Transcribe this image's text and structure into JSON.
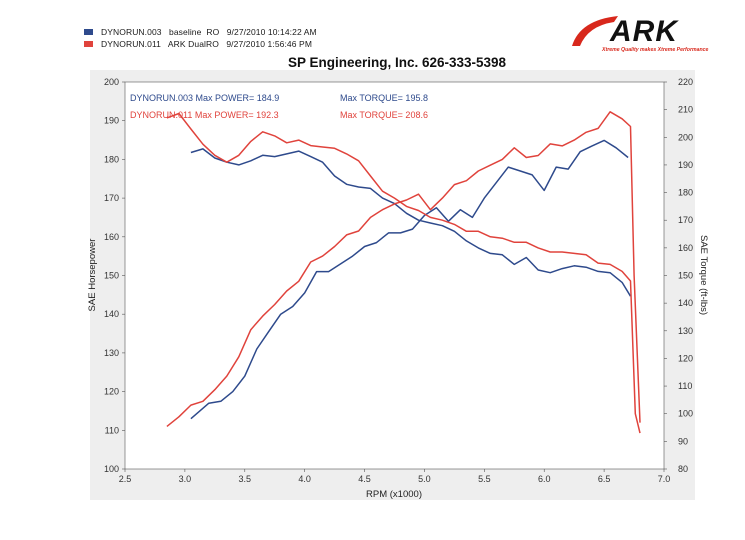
{
  "legend": {
    "rows": [
      {
        "text": "DYNORUN.003   baseline  RO   9/27/2010 10:14:22 AM",
        "color": "#2e4a8c"
      },
      {
        "text": "DYNORUN.011   ARK DualRO   9/27/2010 1:56:46 PM",
        "color": "#e0433c"
      }
    ]
  },
  "logo": {
    "text": "ARK",
    "tagline": "Xtreme Quality makes Xtreme Performance",
    "accent": "#d8281c"
  },
  "chart_data": {
    "type": "line",
    "title": "SP Engineering, Inc. 626-333-5398",
    "xlabel": "RPM (x1000)",
    "ylabel": "SAE Horsepower",
    "y2label": "SAE Torque (ft-lbs)",
    "xlim": [
      2.5,
      7.0
    ],
    "ylim": [
      100,
      200
    ],
    "y2lim": [
      80,
      220
    ],
    "x_ticks": [
      "2.5",
      "3.0",
      "3.5",
      "4.0",
      "4.5",
      "5.0",
      "5.5",
      "6.0",
      "6.5",
      "7.0"
    ],
    "y_ticks": [
      "100",
      "110",
      "120",
      "130",
      "140",
      "150",
      "160",
      "170",
      "180",
      "190",
      "200"
    ],
    "y2_ticks": [
      "80",
      "90",
      "100",
      "110",
      "120",
      "130",
      "140",
      "150",
      "160",
      "170",
      "180",
      "190",
      "200",
      "210",
      "220"
    ],
    "grid": false,
    "annotations": [
      {
        "text": "DYNORUN.003  Max POWER= 184.9",
        "color": "#2e4a8c"
      },
      {
        "text": "Max TORQUE= 195.8",
        "color": "#2e4a8c"
      },
      {
        "text": "DYNORUN.011  Max POWER= 192.3",
        "color": "#e0433c"
      },
      {
        "text": "Max TORQUE= 208.6",
        "color": "#e0433c"
      }
    ],
    "series": [
      {
        "color": "#2e4a8c",
        "axis": "left",
        "quantity": "power",
        "x": [
          3.05,
          3.2,
          3.3,
          3.4,
          3.5,
          3.6,
          3.7,
          3.8,
          3.9,
          4.0,
          4.1,
          4.2,
          4.3,
          4.4,
          4.5,
          4.6,
          4.7,
          4.8,
          4.9,
          5.0,
          5.1,
          5.2,
          5.3,
          5.4,
          5.5,
          5.6,
          5.7,
          5.8,
          5.9,
          6.0,
          6.1,
          6.2,
          6.3,
          6.4,
          6.5,
          6.6,
          6.7
        ],
        "y": [
          113,
          117,
          117.5,
          120,
          124,
          131,
          135.5,
          140,
          142,
          145.5,
          151,
          151,
          153,
          155,
          157.5,
          158.5,
          161,
          161,
          162,
          165.5,
          167.5,
          164,
          167,
          165,
          170,
          174,
          178,
          177,
          176,
          172,
          178,
          177.5,
          182,
          183.5,
          184.9,
          183,
          180.5
        ]
      },
      {
        "color": "#2e4a8c",
        "axis": "right",
        "quantity": "torque",
        "x": [
          3.05,
          3.15,
          3.25,
          3.35,
          3.45,
          3.55,
          3.65,
          3.75,
          3.85,
          3.95,
          4.05,
          4.15,
          4.25,
          4.35,
          4.45,
          4.55,
          4.65,
          4.75,
          4.85,
          4.95,
          5.05,
          5.15,
          5.25,
          5.35,
          5.45,
          5.55,
          5.65,
          5.75,
          5.85,
          5.95,
          6.05,
          6.15,
          6.25,
          6.35,
          6.45,
          6.55,
          6.65,
          6.72
        ],
        "y": [
          194.5,
          195.8,
          192.5,
          191,
          190,
          191.5,
          193.5,
          193,
          194,
          195,
          193,
          191,
          186,
          183,
          182,
          181.5,
          178,
          176,
          172.5,
          170,
          169,
          168,
          166,
          162.5,
          160,
          158,
          157.5,
          154,
          156.5,
          152,
          151,
          152.5,
          153.5,
          153,
          151.5,
          151,
          147.5,
          142.5
        ]
      },
      {
        "color": "#e0433c",
        "axis": "left",
        "quantity": "power",
        "x": [
          2.85,
          2.95,
          3.05,
          3.15,
          3.25,
          3.35,
          3.45,
          3.55,
          3.65,
          3.75,
          3.85,
          3.95,
          4.05,
          4.15,
          4.25,
          4.35,
          4.45,
          4.55,
          4.65,
          4.75,
          4.85,
          4.95,
          5.05,
          5.15,
          5.25,
          5.35,
          5.45,
          5.55,
          5.65,
          5.75,
          5.85,
          5.95,
          6.05,
          6.15,
          6.25,
          6.35,
          6.45,
          6.55,
          6.65,
          6.72,
          6.75,
          6.8
        ],
        "y": [
          111,
          113.5,
          116.5,
          117.5,
          120.5,
          124,
          129,
          136,
          139.5,
          142.5,
          146,
          148.5,
          153.5,
          155,
          157.5,
          160.5,
          161.5,
          165,
          167,
          168.5,
          169.5,
          171,
          167,
          170,
          173.5,
          174.5,
          177,
          178.5,
          180,
          183,
          180.5,
          181,
          184,
          183.5,
          185,
          187,
          188,
          192.3,
          190.5,
          188.5,
          150,
          112
        ]
      },
      {
        "color": "#e0433c",
        "axis": "right",
        "quantity": "torque",
        "x": [
          2.85,
          2.95,
          3.05,
          3.15,
          3.25,
          3.35,
          3.45,
          3.55,
          3.65,
          3.75,
          3.85,
          3.95,
          4.05,
          4.15,
          4.25,
          4.35,
          4.45,
          4.55,
          4.65,
          4.75,
          4.85,
          4.95,
          5.05,
          5.15,
          5.25,
          5.35,
          5.45,
          5.55,
          5.65,
          5.75,
          5.85,
          5.95,
          6.05,
          6.15,
          6.25,
          6.35,
          6.45,
          6.55,
          6.65,
          6.72,
          6.76,
          6.8
        ],
        "y": [
          207,
          208.6,
          203,
          197.5,
          193.5,
          191,
          193.5,
          198.5,
          202,
          200.5,
          198,
          199,
          197,
          196.5,
          196,
          194,
          191.5,
          186,
          180.5,
          178,
          175,
          173.5,
          171,
          170,
          168.5,
          166,
          166,
          164,
          163.5,
          162,
          162,
          160,
          158.5,
          158.5,
          158,
          157.5,
          154.5,
          154,
          151.5,
          148,
          100,
          93
        ]
      }
    ]
  }
}
